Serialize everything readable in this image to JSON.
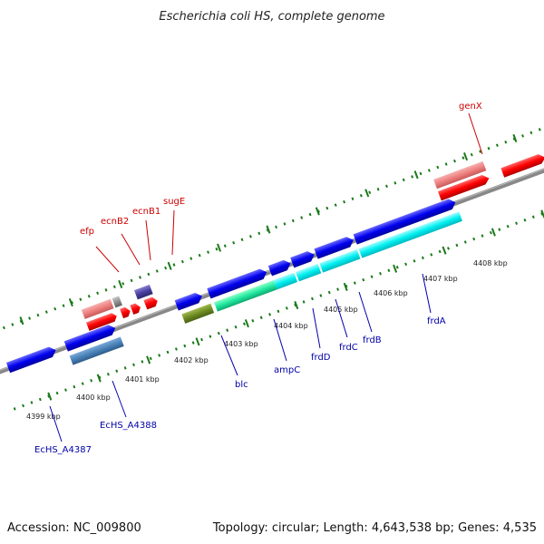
{
  "title": "Escherichia coli HS, complete genome",
  "footer": {
    "accession": "Accession: NC_009800",
    "topology": "Topology: circular; Length: 4,643,538 bp; Genes: 4,535"
  },
  "scale_labels": [
    "4399 kbp",
    "4400 kbp",
    "4401 kbp",
    "4402 kbp",
    "4403 kbp",
    "4404 kbp",
    "4405 kbp",
    "4406 kbp",
    "4407 kbp",
    "4408 kbp"
  ],
  "upper_labels": [
    "efp",
    "ecnB2",
    "ecnB1",
    "sugE",
    "genX"
  ],
  "lower_labels": [
    "EcHS_A4387",
    "EcHS_A4388",
    "blc",
    "ampC",
    "frdD",
    "frdC",
    "frdB",
    "frdA"
  ],
  "colors": {
    "forward_label": "#cc0000",
    "reverse_label": "#0000aa",
    "backbone": "#888888",
    "tick": "#1a7a1a"
  }
}
